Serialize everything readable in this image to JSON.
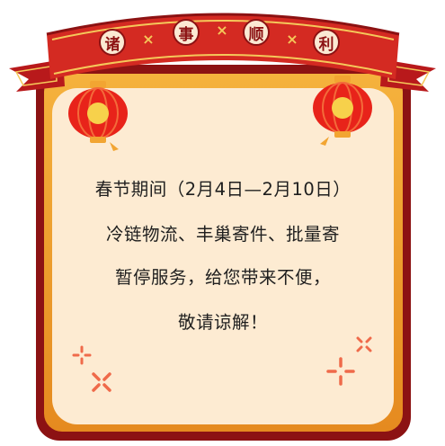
{
  "banner": {
    "chars": [
      "诸",
      "事",
      "顺",
      "利"
    ],
    "separator": "×"
  },
  "notice": {
    "lines": [
      "春节期间（2月4日—2月10日）",
      "冷链物流、丰巢寄件、批量寄",
      "暂停服务，给您带来不便，",
      "敬请谅解！"
    ]
  },
  "colors": {
    "frame": "#8c1213",
    "gold": "#f0a534",
    "paper": "#fdebd2",
    "ribbon": "#d42a22",
    "lantern": "#e8231a"
  },
  "icons": [
    "lantern-icon",
    "sparkle-icon"
  ]
}
